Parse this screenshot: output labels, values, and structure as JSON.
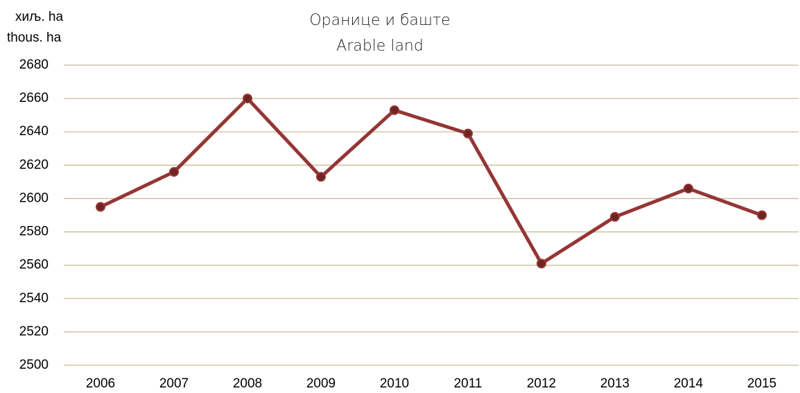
{
  "chart_data": {
    "type": "line",
    "title": "Оранице и баште",
    "subtitle": "Arable land",
    "y_label": [
      "хиљ. ha",
      "thous. ha"
    ],
    "categories": [
      "2006",
      "2007",
      "2008",
      "2009",
      "2010",
      "2011",
      "2012",
      "2013",
      "2014",
      "2015"
    ],
    "series": [
      {
        "name": "Arable land",
        "color": "#943634",
        "values": [
          2595,
          2616,
          2660,
          2613,
          2653,
          2639,
          2561,
          2589,
          2606,
          2590
        ]
      }
    ],
    "ylim": [
      2500,
      2680
    ],
    "yticks": [
      2500,
      2520,
      2540,
      2560,
      2580,
      2600,
      2620,
      2640,
      2660,
      2680
    ],
    "grid": true,
    "legend": false
  }
}
